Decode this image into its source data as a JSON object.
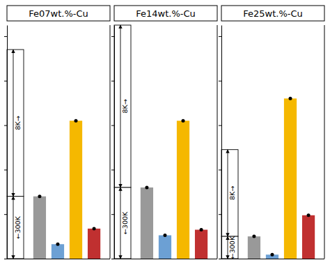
{
  "chart_data": [
    {
      "type": "bar",
      "title": "Fe07wt.%-Cu",
      "categories": [
        null,
        null,
        null,
        null
      ],
      "values": [
        0.28,
        0.065,
        0.62,
        0.135
      ],
      "colors": [
        "#999999",
        "#6ca0d4",
        "#f5b800",
        "#c03030"
      ],
      "marker": "circle",
      "ylim": [
        0.0,
        1.05
      ],
      "yticks": [
        0,
        0.2,
        0.4,
        0.6,
        0.8,
        1.0
      ],
      "tick_labels": false,
      "grid": false,
      "annotations": [
        {
          "text": "8K→",
          "from": 0.28,
          "to": 0.94
        },
        {
          "text": "←300K",
          "from": 0.0,
          "to": 0.28
        }
      ]
    },
    {
      "type": "bar",
      "title": "Fe14wt.%-Cu",
      "categories": [
        null,
        null,
        null,
        null
      ],
      "values": [
        0.32,
        0.105,
        0.62,
        0.13
      ],
      "colors": [
        "#999999",
        "#6ca0d4",
        "#f5b800",
        "#c03030"
      ],
      "marker": "circle",
      "ylim": [
        0.0,
        1.05
      ],
      "yticks": [
        0,
        0.2,
        0.4,
        0.6,
        0.8,
        1.0
      ],
      "tick_labels": false,
      "grid": false,
      "annotations": [
        {
          "text": "8K→",
          "from": 0.32,
          "to": 1.05
        },
        {
          "text": "←300K",
          "from": 0.0,
          "to": 0.32
        }
      ]
    },
    {
      "type": "bar",
      "title": "Fe25wt.%-Cu",
      "categories": [
        null,
        null,
        null,
        null
      ],
      "values": [
        0.1,
        0.018,
        0.72,
        0.195
      ],
      "colors": [
        "#999999",
        "#6ca0d4",
        "#f5b800",
        "#c03030"
      ],
      "marker": "circle",
      "ylim": [
        0.0,
        1.05
      ],
      "yticks": [
        0,
        0.2,
        0.4,
        0.6,
        0.8,
        1.0
      ],
      "tick_labels": false,
      "grid": false,
      "annotations": [
        {
          "text": "8K→",
          "from": 0.1,
          "to": 0.49
        },
        {
          "text": "←300K",
          "from": 0.0,
          "to": 0.1
        }
      ]
    }
  ]
}
